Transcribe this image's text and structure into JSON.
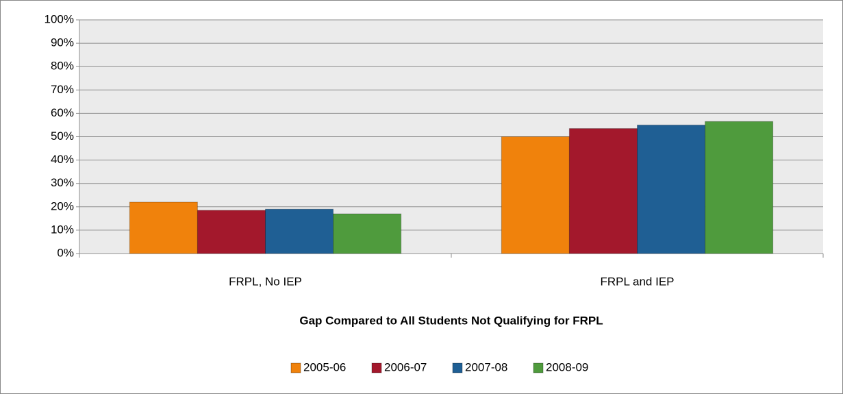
{
  "chart_data": {
    "type": "bar",
    "x_label": "Gap Compared to All Students Not Qualifying for FRPL",
    "categories": [
      "FRPL, No IEP",
      "FRPL and IEP"
    ],
    "series": [
      {
        "name": "2005-06",
        "color": "#f0820c",
        "values": [
          22,
          50
        ]
      },
      {
        "name": "2006-07",
        "color": "#a3182c",
        "values": [
          18.5,
          53.5
        ]
      },
      {
        "name": "2007-08",
        "color": "#1f5f94",
        "values": [
          19,
          55
        ]
      },
      {
        "name": "2008-09",
        "color": "#4f9b3d",
        "values": [
          17,
          56.5
        ]
      }
    ],
    "ylim": [
      0,
      100
    ],
    "yticks": [
      {
        "value": 0,
        "label": "0%"
      },
      {
        "value": 10,
        "label": "10%"
      },
      {
        "value": 20,
        "label": "20%"
      },
      {
        "value": 30,
        "label": "30%"
      },
      {
        "value": 40,
        "label": "40%"
      },
      {
        "value": 50,
        "label": "50%"
      },
      {
        "value": 60,
        "label": "60%"
      },
      {
        "value": 70,
        "label": "70%"
      },
      {
        "value": 80,
        "label": "80%"
      },
      {
        "value": 90,
        "label": "90%"
      },
      {
        "value": 100,
        "label": "100%"
      }
    ],
    "grid": true,
    "legend": "bottom"
  }
}
